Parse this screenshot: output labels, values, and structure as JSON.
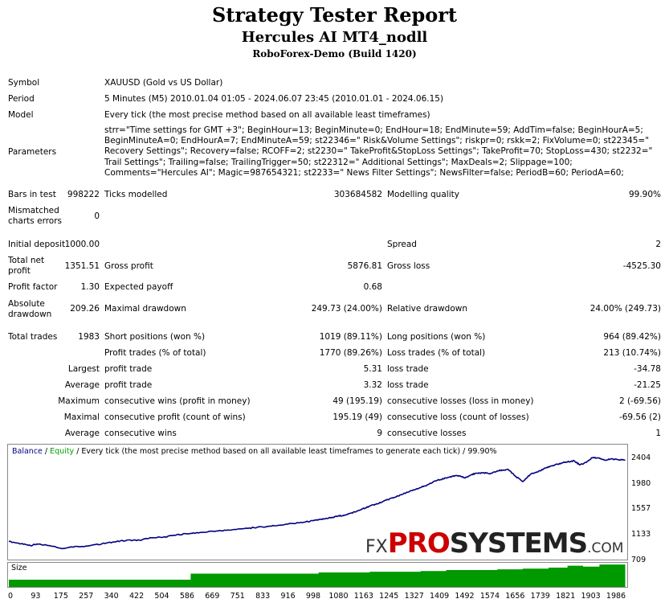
{
  "header": {
    "title": "Strategy Tester Report",
    "subtitle": "Hercules AI MT4_nodll",
    "server": "RoboForex-Demo (Build 1420)"
  },
  "info": {
    "symbol_label": "Symbol",
    "symbol": "XAUUSD (Gold vs US Dollar)",
    "period_label": "Period",
    "period": "5 Minutes (M5) 2010.01.04 01:05 - 2024.06.07 23:45 (2010.01.01 - 2024.06.15)",
    "model_label": "Model",
    "model": "Every tick (the most precise method based on all available least timeframes)",
    "parameters_label": "Parameters",
    "parameters": "strr=\"Time settings for GMT +3\"; BeginHour=13; BeginMinute=0; EndHour=18; EndMinute=59; AddTim=false; BeginHourA=5; BeginMinuteA=0; EndHourA=7; EndMinuteA=59; st22346=\" Risk&Volume Settings\"; riskpr=0; rskk=2; FixVolume=0; st22345=\" Recovery Settings\"; Recovery=false; RCOFF=2; st2230=\" TakeProfit&StopLoss Settings\"; TakeProfit=70; StopLoss=430; st2232=\" Trail Settings\"; Trailing=false; TrailingTrigger=50; st22312=\" Additional Settings\"; MaxDeals=2; Slippage=100; Comments=\"Hercules AI\"; Magic=987654321; st2233=\" News Filter Settings\"; NewsFilter=false; PeriodB=60; PeriodA=60;"
  },
  "stats": {
    "bars_label": "Bars in test",
    "bars": "998222",
    "ticks_label": "Ticks modelled",
    "ticks": "303684582",
    "quality_label": "Modelling quality",
    "quality": "99.90%",
    "mismatch_label_1": "Mismatched",
    "mismatch_label_2": "charts errors",
    "mismatch": "0",
    "deposit_label": "Initial deposit",
    "deposit": "1000.00",
    "spread_label": "Spread",
    "spread": "2",
    "netprofit_label_1": "Total net",
    "netprofit_label_2": "profit",
    "netprofit": "1351.51",
    "grossprofit_label": "Gross profit",
    "grossprofit": "5876.81",
    "grossloss_label": "Gross loss",
    "grossloss": "-4525.30",
    "pf_label": "Profit factor",
    "pf": "1.30",
    "payoff_label": "Expected payoff",
    "payoff": "0.68",
    "absdd_label_1": "Absolute",
    "absdd_label_2": "drawdown",
    "absdd": "209.26",
    "maxdd_label": "Maximal drawdown",
    "maxdd": "249.73 (24.00%)",
    "reldd_label": "Relative drawdown",
    "reldd": "24.00% (249.73)",
    "trades_label": "Total trades",
    "trades": "1983",
    "short_label": "Short positions (won %)",
    "short": "1019 (89.11%)",
    "long_label": "Long positions (won %)",
    "long": "964 (89.42%)",
    "ptrades_label": "Profit trades (% of total)",
    "ptrades": "1770 (89.26%)",
    "ltrades_label": "Loss trades (% of total)",
    "ltrades": "213 (10.74%)",
    "largest_label": "Largest",
    "largest_pt_label": "profit trade",
    "largest_pt": "5.31",
    "largest_lt_label": "loss trade",
    "largest_lt": "-34.78",
    "average_label": "Average",
    "average_pt_label": "profit trade",
    "average_pt": "3.32",
    "average_lt_label": "loss trade",
    "average_lt": "-21.25",
    "maximum_label": "Maximum",
    "maxcw_label": "consecutive wins (profit in money)",
    "maxcw": "49 (195.19)",
    "maxcl_label": "consecutive losses (loss in money)",
    "maxcl": "2 (-69.56)",
    "maximal_label": "Maximal",
    "maxcp_label": "consecutive profit (count of wins)",
    "maxcp": "195.19 (49)",
    "maxcloss_label": "consecutive loss (count of losses)",
    "maxcloss": "-69.56 (2)",
    "avg2_label": "Average",
    "avgcw_label": "consecutive wins",
    "avgcw": "9",
    "avgcl_label": "consecutive losses",
    "avgcl": "1"
  },
  "chart_caption": {
    "balance": "Balance",
    "sep": " / ",
    "equity": "Equity",
    "rest": " / Every tick (the most precise method based on all available least timeframes to generate each tick) / 99.90%"
  },
  "size_label": "Size",
  "watermark": {
    "fx": "FX",
    "pro": "PRO",
    "systems": "SYSTEMS",
    "com": ".COM"
  },
  "colors": {
    "balance": "#000080",
    "equity": "#00a000",
    "size": "#009900",
    "watermark_red": "#cc0000"
  },
  "chart_data": {
    "type": "line",
    "yticks": [
      "2404",
      "1980",
      "1557",
      "1133",
      "709"
    ],
    "xticks": [
      "0",
      "93",
      "175",
      "257",
      "340",
      "422",
      "504",
      "586",
      "669",
      "751",
      "833",
      "916",
      "998",
      "1080",
      "1163",
      "1245",
      "1327",
      "1409",
      "1492",
      "1574",
      "1656",
      "1739",
      "1821",
      "1903",
      "1986"
    ],
    "ylim": [
      709,
      2404
    ],
    "xlim": [
      0,
      1990
    ],
    "series": [
      {
        "name": "Balance",
        "x": [
          0,
          40,
          70,
          90,
          130,
          175,
          200,
          257,
          300,
          340,
          380,
          422,
          460,
          504,
          540,
          586,
          620,
          669,
          700,
          751,
          790,
          833,
          870,
          916,
          950,
          980,
          998,
          1020,
          1040,
          1060,
          1080,
          1100,
          1120,
          1140,
          1163,
          1180,
          1200,
          1220,
          1245,
          1270,
          1300,
          1327,
          1350,
          1380,
          1409,
          1430,
          1450,
          1470,
          1492,
          1510,
          1530,
          1550,
          1574,
          1590,
          1610,
          1630,
          1656,
          1680,
          1700,
          1720,
          1739,
          1760,
          1780,
          1800,
          1821,
          1840,
          1860,
          1880,
          1903,
          1920,
          1940,
          1960,
          1986
        ],
        "y": [
          1000,
          960,
          930,
          955,
          930,
          880,
          910,
          925,
          960,
          990,
          1020,
          1020,
          1060,
          1075,
          1110,
          1135,
          1150,
          1175,
          1185,
          1210,
          1230,
          1250,
          1270,
          1300,
          1320,
          1345,
          1360,
          1380,
          1400,
          1420,
          1440,
          1470,
          1500,
          1545,
          1590,
          1620,
          1650,
          1700,
          1740,
          1790,
          1850,
          1900,
          1950,
          2020,
          2060,
          2090,
          2100,
          2060,
          2120,
          2140,
          2150,
          2130,
          2180,
          2190,
          2200,
          2100,
          2000,
          2120,
          2160,
          2200,
          2250,
          2280,
          2310,
          2330,
          2350,
          2280,
          2320,
          2400,
          2395,
          2360,
          2380,
          2370,
          2360
        ]
      }
    ]
  },
  "size_data": {
    "x": [
      0,
      300,
      586,
      998,
      1163,
      1327,
      1409,
      1574,
      1656,
      1739,
      1800,
      1850,
      1903,
      1986
    ],
    "level": [
      0.3,
      0.3,
      0.55,
      0.6,
      0.63,
      0.66,
      0.7,
      0.73,
      0.76,
      0.8,
      0.88,
      0.84,
      0.93,
      0.93
    ]
  }
}
